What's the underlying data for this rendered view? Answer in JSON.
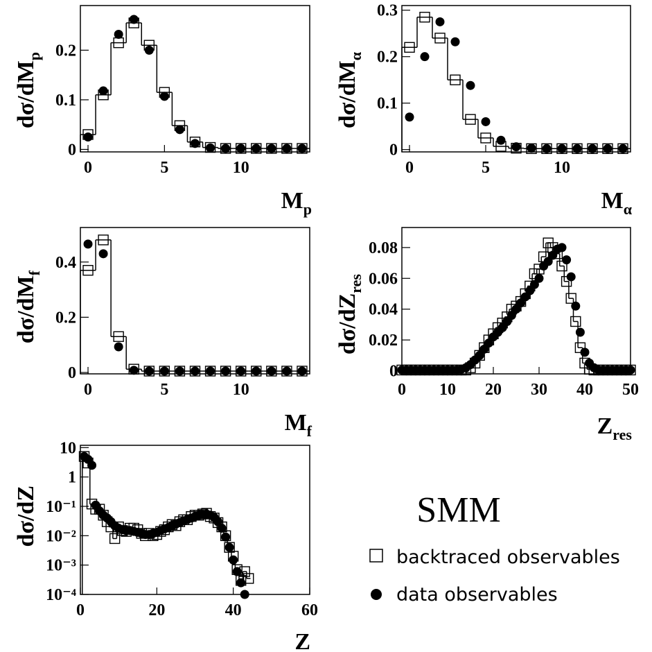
{
  "legend": {
    "title": "SMM"
  },
  "chart_data": [
    {
      "type": "histogram",
      "ylabel": "dσ/dM",
      "ylabel_sub": "p",
      "xlabel": "M",
      "xlabel_sub": "p",
      "x": [
        0,
        1,
        2,
        3,
        4,
        5,
        6,
        7,
        8,
        9,
        10,
        11,
        12,
        13,
        14
      ],
      "xlim": [
        -0.5,
        14.5
      ],
      "xticks": [
        0,
        5,
        10
      ],
      "ylim": [
        -0.005,
        0.29
      ],
      "yticks": [
        0,
        0.1,
        0.2
      ],
      "series": [
        {
          "name": "backtraced observables",
          "marker": "square",
          "step": true,
          "color": "#000000",
          "values": [
            0.03,
            0.11,
            0.215,
            0.255,
            0.21,
            0.115,
            0.048,
            0.015,
            0.004,
            0.002,
            0.002,
            0.002,
            0.002,
            0.002,
            0.002
          ]
        },
        {
          "name": "data observables",
          "marker": "circle",
          "color": "#000000",
          "values": [
            0.025,
            0.118,
            0.232,
            0.262,
            0.2,
            0.107,
            0.04,
            0.012,
            0.003,
            0.002,
            0.002,
            0.002,
            0.002,
            0.002,
            0.002
          ]
        }
      ]
    },
    {
      "type": "histogram",
      "ylabel": "dσ/dM",
      "ylabel_sub": "α",
      "xlabel": "M",
      "xlabel_sub": "α",
      "x": [
        0,
        1,
        2,
        3,
        4,
        5,
        6,
        7,
        8,
        9,
        10,
        11,
        12,
        13,
        14
      ],
      "xlim": [
        -0.5,
        14.5
      ],
      "xticks": [
        0,
        5,
        10
      ],
      "ylim": [
        -0.005,
        0.31
      ],
      "yticks": [
        0,
        0.1,
        0.2,
        0.3
      ],
      "series": [
        {
          "marker": "square",
          "step": true,
          "color": "#000000",
          "values": [
            0.22,
            0.285,
            0.24,
            0.15,
            0.065,
            0.025,
            0.007,
            0.003,
            0.002,
            0.002,
            0.002,
            0.002,
            0.002,
            0.002,
            0.002
          ]
        },
        {
          "marker": "circle",
          "color": "#000000",
          "values": [
            0.07,
            0.2,
            0.275,
            0.232,
            0.138,
            0.06,
            0.02,
            0.006,
            0.003,
            0.002,
            0.002,
            0.002,
            0.002,
            0.002,
            0.002
          ]
        }
      ]
    },
    {
      "type": "histogram",
      "ylabel": "dσ/dM",
      "ylabel_sub": "f",
      "xlabel": "M",
      "xlabel_sub": "f",
      "x": [
        0,
        1,
        2,
        3,
        4,
        5,
        6,
        7,
        8,
        9,
        10,
        11,
        12,
        13,
        14
      ],
      "xlim": [
        -0.5,
        14.5
      ],
      "xticks": [
        0,
        5,
        10
      ],
      "ylim": [
        -0.005,
        0.525
      ],
      "yticks": [
        0,
        0.2,
        0.4
      ],
      "series": [
        {
          "marker": "square",
          "step": true,
          "color": "#000000",
          "values": [
            0.37,
            0.48,
            0.13,
            0.012,
            0.005,
            0.005,
            0.005,
            0.005,
            0.005,
            0.005,
            0.005,
            0.005,
            0.005,
            0.005,
            0.005
          ]
        },
        {
          "marker": "circle",
          "color": "#000000",
          "values": [
            0.465,
            0.43,
            0.093,
            0.008,
            0.005,
            0.005,
            0.005,
            0.005,
            0.005,
            0.005,
            0.005,
            0.005,
            0.005,
            0.005,
            0.005
          ]
        }
      ]
    },
    {
      "type": "histogram",
      "ylabel": "dσ/dZ",
      "ylabel_sub": "res",
      "xlabel": "Z",
      "xlabel_sub": "res",
      "x": [
        0,
        1,
        2,
        3,
        4,
        5,
        6,
        7,
        8,
        9,
        10,
        11,
        12,
        13,
        14,
        15,
        16,
        17,
        18,
        19,
        20,
        21,
        22,
        23,
        24,
        25,
        26,
        27,
        28,
        29,
        30,
        31,
        32,
        33,
        34,
        35,
        36,
        37,
        38,
        39,
        40,
        41,
        42,
        43,
        44,
        45,
        46,
        47,
        48,
        49,
        50
      ],
      "xlim": [
        0,
        50
      ],
      "xticks": [
        0,
        10,
        20,
        30,
        40,
        50
      ],
      "ylim": [
        -0.002,
        0.093
      ],
      "yticks": [
        0,
        0.02,
        0.04,
        0.06,
        0.08
      ],
      "series": [
        {
          "marker": "square",
          "step": true,
          "color": "#000000",
          "values": [
            0.0005,
            0.0005,
            0.0005,
            0.0005,
            0.0005,
            0.0005,
            0.0005,
            0.0005,
            0.0005,
            0.0005,
            0.0005,
            0.0005,
            0.0005,
            0.0005,
            0.0005,
            0.002,
            0.005,
            0.01,
            0.015,
            0.02,
            0.024,
            0.028,
            0.031,
            0.035,
            0.04,
            0.042,
            0.045,
            0.05,
            0.055,
            0.063,
            0.066,
            0.074,
            0.083,
            0.08,
            0.076,
            0.068,
            0.058,
            0.047,
            0.032,
            0.015,
            0.005,
            0.001,
            0.0005,
            0.0005,
            0.0005,
            0.0005,
            0.0005,
            0.0005,
            0.0005,
            0.0005,
            0.0005
          ]
        },
        {
          "marker": "circle",
          "color": "#000000",
          "values": [
            0.0005,
            0.0005,
            0.0005,
            0.0005,
            0.0005,
            0.0005,
            0.0005,
            0.0005,
            0.0005,
            0.0005,
            0.0005,
            0.0005,
            0.0005,
            0.001,
            0.002,
            0.004,
            0.007,
            0.01,
            0.014,
            0.018,
            0.022,
            0.025,
            0.028,
            0.032,
            0.036,
            0.04,
            0.044,
            0.048,
            0.052,
            0.056,
            0.06,
            0.068,
            0.071,
            0.075,
            0.079,
            0.08,
            0.072,
            0.061,
            0.042,
            0.025,
            0.012,
            0.005,
            0.002,
            0.0005,
            0.0005,
            0.0005,
            0.0005,
            0.0005,
            0.0005,
            0.0005,
            0.0005
          ]
        }
      ]
    },
    {
      "type": "histogram",
      "ylabel": "dσ/dZ",
      "xlabel": "Z",
      "log_y": true,
      "x": [
        1,
        2,
        3,
        4,
        5,
        6,
        7,
        8,
        9,
        10,
        11,
        12,
        13,
        14,
        15,
        16,
        17,
        18,
        19,
        20,
        21,
        22,
        23,
        24,
        25,
        26,
        27,
        28,
        29,
        30,
        31,
        32,
        33,
        34,
        35,
        36,
        37,
        38,
        39,
        40,
        41,
        42,
        43,
        44
      ],
      "xlim": [
        0,
        60
      ],
      "xticks": [
        0,
        20,
        40,
        60
      ],
      "ylim": [
        0.0001,
        12
      ],
      "yticks": [
        10,
        1,
        {
          "value": 0.1,
          "label": "10⁻¹"
        },
        {
          "value": 0.01,
          "label": "10⁻²"
        },
        {
          "value": 0.001,
          "label": "10⁻³"
        },
        {
          "value": 0.0001,
          "label": "10⁻⁴"
        }
      ],
      "series": [
        {
          "marker": "square",
          "step": true,
          "color": "#000000",
          "values": [
            5,
            3,
            0.12,
            0.08,
            0.08,
            0.05,
            0.03,
            0.02,
            0.008,
            0.02,
            0.015,
            0.014,
            0.018,
            0.018,
            0.016,
            0.012,
            0.01,
            0.012,
            0.01,
            0.011,
            0.014,
            0.016,
            0.02,
            0.024,
            0.022,
            0.03,
            0.035,
            0.035,
            0.045,
            0.05,
            0.05,
            0.055,
            0.058,
            0.045,
            0.04,
            0.028,
            0.02,
            0.01,
            0.004,
            0.002,
            0.0007,
            0.0003,
            0.0006,
            0.00035
          ]
        },
        {
          "marker": "circle",
          "color": "#000000",
          "values": [
            5,
            4,
            2.5,
            0.11,
            0.07,
            0.05,
            0.04,
            0.03,
            0.022,
            0.018,
            0.016,
            0.015,
            0.015,
            0.014,
            0.013,
            0.012,
            0.011,
            0.011,
            0.012,
            0.013,
            0.015,
            0.017,
            0.019,
            0.022,
            0.025,
            0.028,
            0.032,
            0.036,
            0.04,
            0.045,
            0.05,
            0.052,
            0.055,
            0.05,
            0.042,
            0.03,
            0.018,
            0.009,
            0.004,
            0.0015,
            0.0006,
            0.00025,
            0.0001,
            null
          ]
        }
      ]
    }
  ]
}
